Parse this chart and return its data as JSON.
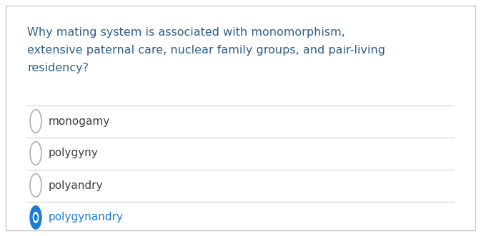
{
  "bg_color": "#ffffff",
  "border_color": "#c8c8c8",
  "question_color": "#2c5f8a",
  "question_text_line1": "Why mating system is associated with monomorphism,",
  "question_text_line2": "extensive paternal care, nuclear family groups, and pair-living",
  "question_text_line3": "residency?",
  "options": [
    "monogamy",
    "polygyny",
    "polyandry",
    "polygynandry"
  ],
  "option_color_default": "#3d3d3d",
  "option_color_selected": "#1a7fd4",
  "selected_index": 3,
  "radio_edge_default": "#b0b0b0",
  "radio_fill_selected": "#1a7fd4",
  "separator_color": "#d0d0d0",
  "font_size_question": 11.5,
  "font_size_option": 11.0
}
